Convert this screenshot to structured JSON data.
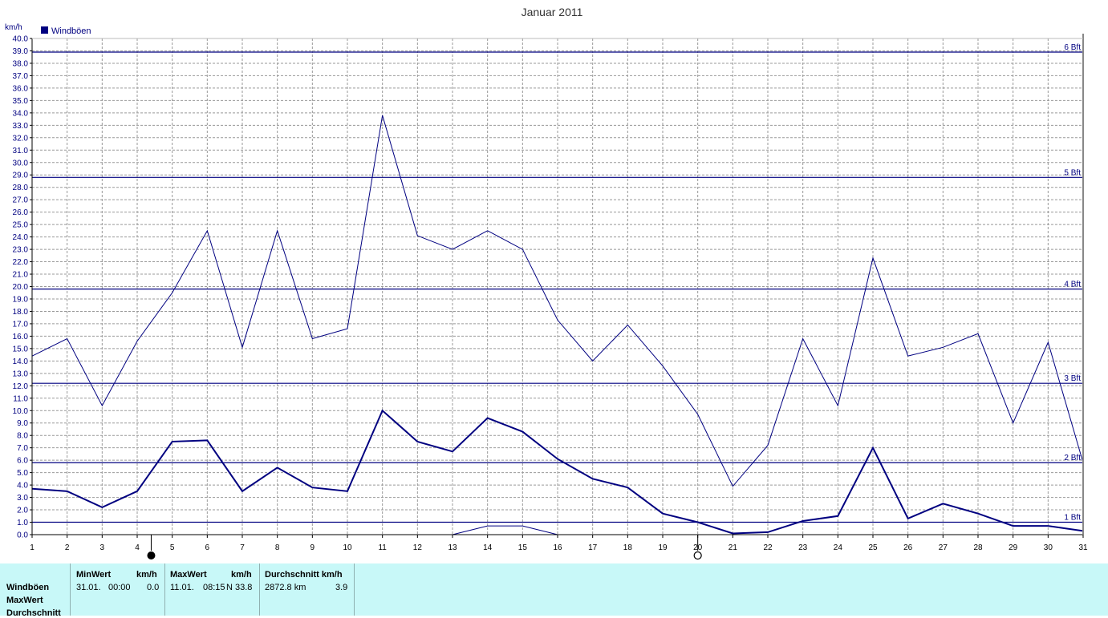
{
  "chart_data": {
    "type": "line",
    "title": "Januar 2011",
    "ylabel": "km/h",
    "ylim": [
      0,
      40
    ],
    "yticks": [
      "0.0",
      "1.0",
      "2.0",
      "3.0",
      "4.0",
      "5.0",
      "6.0",
      "7.0",
      "8.0",
      "9.0",
      "10.0",
      "11.0",
      "12.0",
      "13.0",
      "14.0",
      "15.0",
      "16.0",
      "17.0",
      "18.0",
      "19.0",
      "20.0",
      "21.0",
      "22.0",
      "23.0",
      "24.0",
      "25.0",
      "26.0",
      "27.0",
      "28.0",
      "29.0",
      "30.0",
      "31.0",
      "32.0",
      "33.0",
      "34.0",
      "35.0",
      "36.0",
      "37.0",
      "38.0",
      "39.0",
      "40.0"
    ],
    "x": [
      1,
      2,
      3,
      4,
      5,
      6,
      7,
      8,
      9,
      10,
      11,
      12,
      13,
      14,
      15,
      16,
      17,
      18,
      19,
      20,
      21,
      22,
      23,
      24,
      25,
      26,
      27,
      28,
      29,
      30,
      31
    ],
    "xlim": [
      1,
      31
    ],
    "grid": true,
    "legend": {
      "position": "top-left",
      "entries": [
        {
          "label": "Windböen",
          "color": "#000080"
        }
      ]
    },
    "series": [
      {
        "role": "max",
        "color": "#000080",
        "values": [
          14.4,
          15.8,
          10.4,
          15.6,
          19.5,
          24.5,
          15.1,
          24.5,
          15.8,
          16.6,
          33.8,
          24.1,
          23.0,
          24.5,
          23.0,
          17.3,
          14.0,
          16.9,
          13.6,
          9.7,
          3.9,
          7.2,
          15.8,
          10.4,
          22.3,
          14.4,
          15.1,
          16.2,
          9.0,
          15.5,
          5.8
        ]
      },
      {
        "role": "average",
        "color": "#000080",
        "values": [
          3.7,
          3.5,
          2.2,
          3.5,
          7.5,
          7.6,
          3.5,
          5.4,
          3.8,
          3.5,
          10.0,
          7.5,
          6.7,
          9.4,
          8.3,
          6.1,
          4.5,
          3.8,
          1.7,
          1.0,
          0.1,
          0.2,
          1.1,
          1.5,
          7.0,
          1.3,
          2.5,
          1.7,
          0.7,
          0.7,
          0.3
        ]
      },
      {
        "role": "min",
        "color": "#000080",
        "x": [
          13,
          14,
          15,
          16
        ],
        "values": [
          0.0,
          0.7,
          0.7,
          0.0
        ]
      }
    ],
    "reference_lines": [
      {
        "label": "1 Bft",
        "y": 1.0
      },
      {
        "label": "2 Bft",
        "y": 5.8
      },
      {
        "label": "3 Bft",
        "y": 12.2
      },
      {
        "label": "4 Bft",
        "y": 19.8
      },
      {
        "label": "5 Bft",
        "y": 28.8
      },
      {
        "label": "6 Bft",
        "y": 38.9
      }
    ],
    "moon_phases": [
      {
        "x": 4.4,
        "phase": "new",
        "icon": "new-moon-icon"
      },
      {
        "x": 20,
        "phase": "full",
        "icon": "full-moon-icon"
      }
    ]
  },
  "stats": {
    "rows": [
      "Windböen",
      "MaxWert",
      "Durchschnitt"
    ],
    "min": {
      "header": "MinWert",
      "unit": "km/h",
      "date": "31.01.",
      "time": "00:00",
      "value": "0.0"
    },
    "max": {
      "header": "MaxWert",
      "unit": "km/h",
      "date": "11.01.",
      "time": "08:15",
      "value": "N 33.8"
    },
    "avg": {
      "header": "Durchschnitt km/h",
      "distance": "2872.8 km",
      "value": "3.9"
    }
  },
  "colors": {
    "line": "#000080",
    "panel": "#c8f8f8",
    "grid": "#999999",
    "frame": "#888888"
  }
}
